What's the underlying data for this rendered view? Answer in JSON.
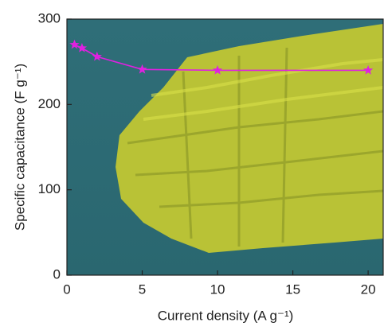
{
  "chart_data": {
    "type": "line",
    "x_label": "Current density (A g⁻¹)",
    "y_label": "Specific capacitance (F g⁻¹)",
    "x": [
      0.5,
      1,
      2,
      5,
      10,
      20
    ],
    "series": [
      {
        "color": "#e020e0",
        "values": [
          270,
          266,
          256,
          241,
          240,
          240
        ]
      }
    ],
    "xlim": [
      0,
      21
    ],
    "ylim": [
      0,
      300
    ],
    "xticks": [
      0,
      5,
      10,
      15,
      20
    ],
    "yticks": [
      0,
      100,
      200,
      300
    ]
  }
}
